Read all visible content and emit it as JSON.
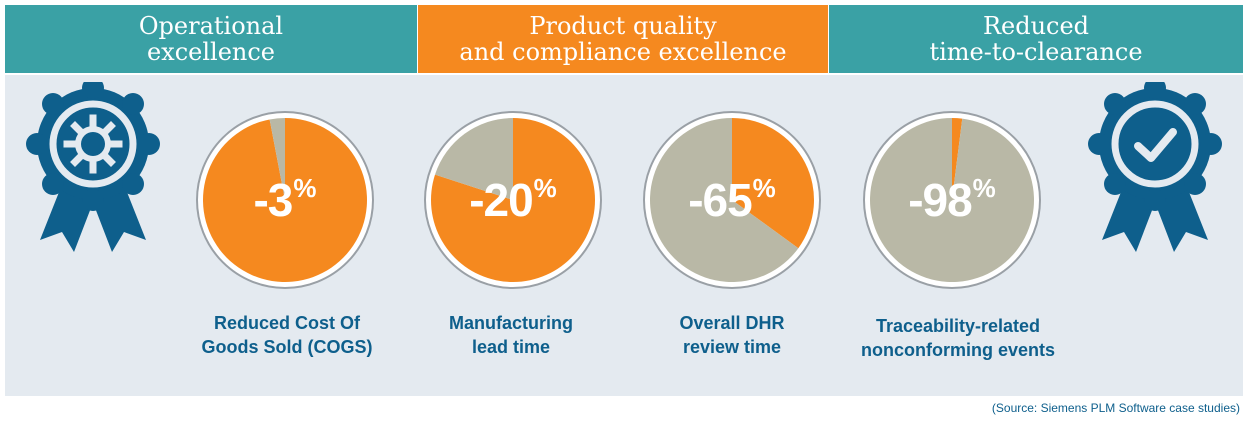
{
  "headers": [
    {
      "line1": "Operational",
      "line2": "excellence"
    },
    {
      "line1": "Product quality",
      "line2": "and compliance excellence"
    },
    {
      "line1": "Reduced",
      "line2": "time-to-clearance"
    }
  ],
  "chart_data": {
    "type": "pie",
    "charts": [
      {
        "value_label": "-3",
        "unit": "%",
        "reduction": 3,
        "caption_line1": "Reduced Cost Of",
        "caption_line2": "Goods Sold (COGS)"
      },
      {
        "value_label": "-20",
        "unit": "%",
        "reduction": 20,
        "caption_line1": "Manufacturing",
        "caption_line2": "lead time"
      },
      {
        "value_label": "-65",
        "unit": "%",
        "reduction": 65,
        "caption_line1": "Overall DHR",
        "caption_line2": "review time"
      },
      {
        "value_label": "-98",
        "unit": "%",
        "reduction": 98,
        "caption_line1": "Traceability-related",
        "caption_line2": "nonconforming events"
      }
    ],
    "colors": {
      "remaining": "#f5891f",
      "reduced": "#b9b8a6"
    }
  },
  "icons": {
    "left_badge": "gear-award-badge-icon",
    "right_badge": "checkmark-award-badge-icon"
  },
  "colors": {
    "teal": "#3aa1a5",
    "orange": "#f5891f",
    "navy": "#0e5f8c",
    "panel": "#e4eaf0"
  },
  "source": "(Source: Siemens PLM Software case studies)"
}
